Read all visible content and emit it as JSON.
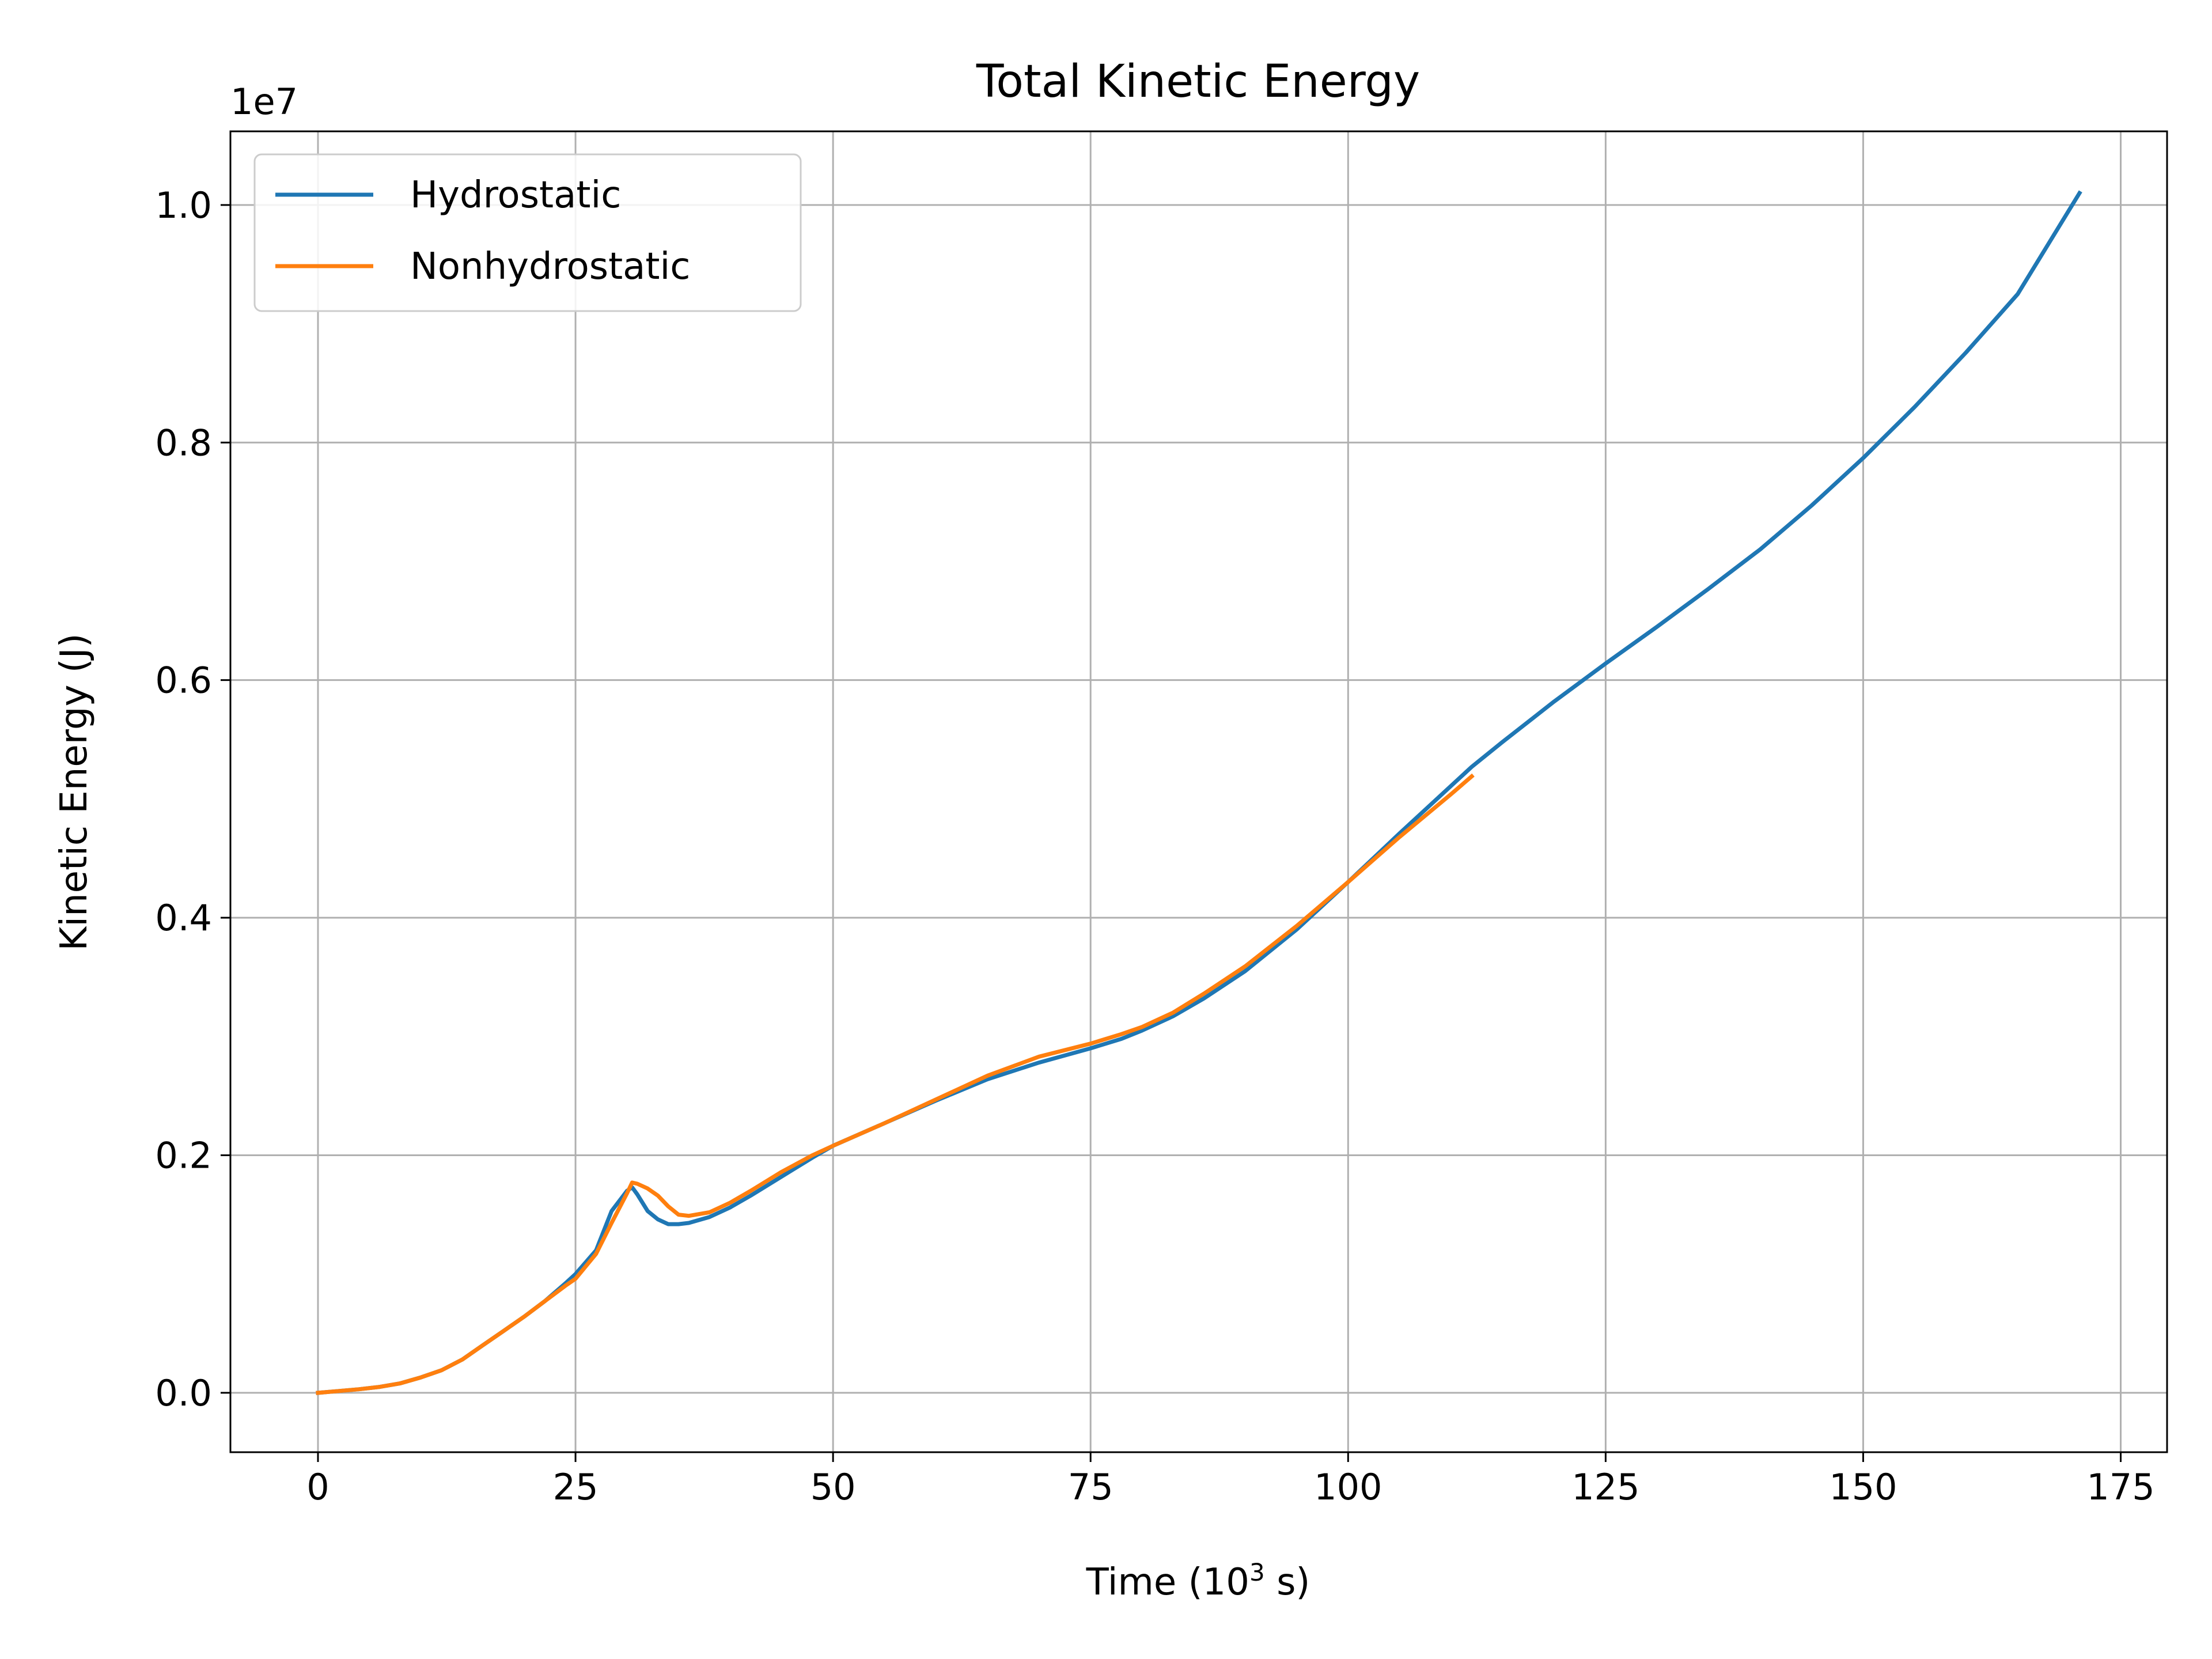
{
  "chart_data": {
    "type": "line",
    "title": "Total Kinetic Energy",
    "xlabel": "Time (10",
    "xlabel_sup": "3",
    "xlabel_suffix": " s)",
    "ylabel": "Kinetic Energy (J)",
    "y_offset_label": "1e7",
    "xlim": [
      -8.5,
      179.5
    ],
    "ylim": [
      -0.05,
      1.062
    ],
    "xticks": [
      0,
      25,
      50,
      75,
      100,
      125,
      150,
      175
    ],
    "xtick_labels": [
      "0",
      "25",
      "50",
      "75",
      "100",
      "125",
      "150",
      "175"
    ],
    "yticks": [
      0.0,
      0.2,
      0.4,
      0.6,
      0.8,
      1.0
    ],
    "ytick_labels": [
      "0.0",
      "0.2",
      "0.4",
      "0.6",
      "0.8",
      "1.0"
    ],
    "grid": true,
    "legend_position": "top-left",
    "series": [
      {
        "name": "Hydrostatic",
        "color": "#1f77b4",
        "x": [
          0,
          2,
          4,
          6,
          8,
          10,
          12,
          14,
          16,
          18,
          20,
          22,
          24,
          25,
          27,
          28.5,
          30,
          30.5,
          31,
          32,
          33,
          34,
          35,
          36,
          38,
          40,
          42,
          45,
          48,
          50,
          55,
          60,
          65,
          70,
          75,
          78,
          80,
          83,
          86,
          90,
          95,
          100,
          105,
          110,
          112,
          115,
          120,
          125,
          130,
          135,
          140,
          145,
          150,
          155,
          160,
          165,
          171
        ],
        "y": [
          0.0,
          0.0015,
          0.003,
          0.005,
          0.008,
          0.013,
          0.019,
          0.028,
          0.04,
          0.052,
          0.064,
          0.077,
          0.092,
          0.1,
          0.12,
          0.153,
          0.17,
          0.173,
          0.167,
          0.153,
          0.146,
          0.142,
          0.142,
          0.143,
          0.148,
          0.156,
          0.166,
          0.182,
          0.198,
          0.208,
          0.227,
          0.246,
          0.264,
          0.278,
          0.29,
          0.298,
          0.305,
          0.317,
          0.332,
          0.355,
          0.39,
          0.43,
          0.471,
          0.511,
          0.527,
          0.548,
          0.582,
          0.614,
          0.645,
          0.677,
          0.71,
          0.747,
          0.787,
          0.83,
          0.876,
          0.925,
          1.01
        ]
      },
      {
        "name": "Nonhydrostatic",
        "color": "#ff7f0e",
        "x": [
          0,
          2,
          4,
          6,
          8,
          10,
          12,
          14,
          16,
          18,
          20,
          22,
          24,
          25,
          27,
          28.5,
          30,
          30.5,
          31,
          32,
          33,
          34,
          35,
          36,
          38,
          40,
          42,
          45,
          48,
          50,
          55,
          60,
          65,
          70,
          75,
          78,
          80,
          83,
          86,
          90,
          95,
          100,
          105,
          110,
          112
        ],
        "y": [
          0.0,
          0.0015,
          0.003,
          0.005,
          0.008,
          0.013,
          0.019,
          0.028,
          0.04,
          0.052,
          0.064,
          0.077,
          0.09,
          0.096,
          0.117,
          0.143,
          0.168,
          0.177,
          0.176,
          0.172,
          0.166,
          0.157,
          0.15,
          0.149,
          0.152,
          0.16,
          0.17,
          0.186,
          0.2,
          0.208,
          0.227,
          0.247,
          0.267,
          0.283,
          0.294,
          0.302,
          0.308,
          0.32,
          0.336,
          0.359,
          0.393,
          0.43,
          0.468,
          0.504,
          0.519
        ]
      }
    ]
  }
}
